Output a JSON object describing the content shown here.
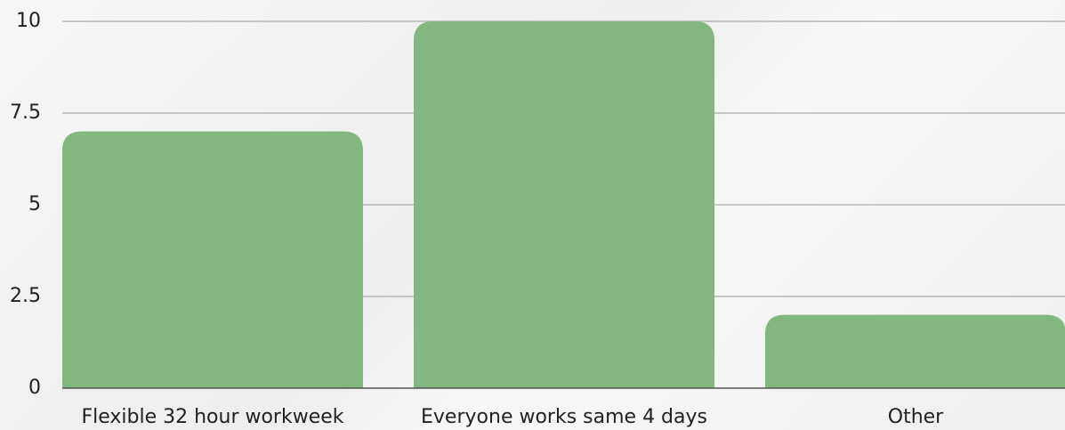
{
  "chart_data": {
    "type": "bar",
    "categories": [
      "Flexible 32 hour workweek",
      "Everyone works same 4 days",
      "Other"
    ],
    "values": [
      7,
      10,
      2
    ],
    "color": "#82b77f",
    "ylim": [
      0,
      10
    ],
    "yticks": [
      0,
      2.5,
      5,
      7.5,
      10
    ],
    "grid": true
  }
}
